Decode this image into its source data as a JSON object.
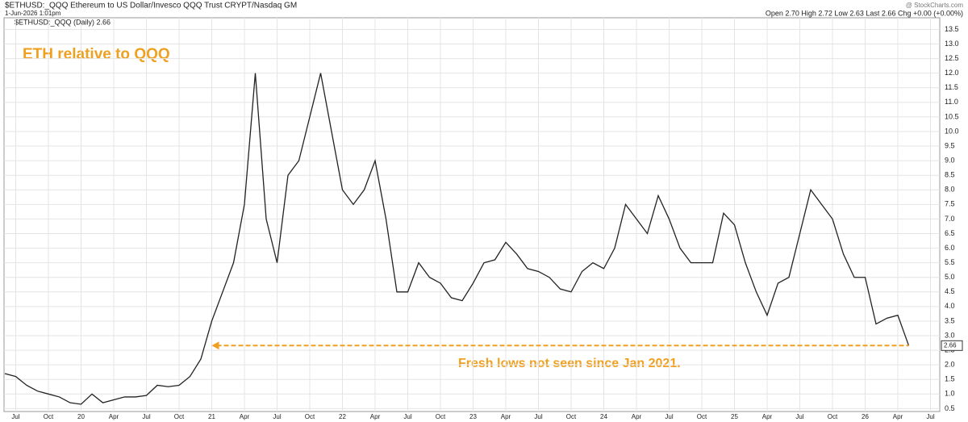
{
  "chart_data": {
    "type": "line",
    "title": "$ETHUSD:_QQQ Ethereum to US Dollar/Invesco QQQ Trust CRYPT/Nasdaq GM",
    "date": "1-Jun-2026 1:01pm",
    "source": "@ StockCharts.com",
    "quote": "Open 2.70 High 2.72 Low 2.63 Last 2.66 Chg +0.00 (+0.00%)",
    "annotations": [
      "ETH relative to QQQ",
      "Fresh lows not seen since Jan 2021."
    ],
    "last_value": 2.66,
    "categories": [
      null,
      "Jul",
      null,
      null,
      "Oct",
      null,
      null,
      "20",
      null,
      null,
      "Apr",
      null,
      null,
      "Jul",
      null,
      null,
      "Oct",
      null,
      null,
      "21",
      null,
      null,
      "Apr",
      null,
      null,
      "Jul",
      null,
      null,
      "Oct",
      null,
      null,
      "22",
      null,
      null,
      "Apr",
      null,
      null,
      "Jul",
      null,
      null,
      "Oct",
      null,
      null,
      "23",
      null,
      null,
      "Apr",
      null,
      null,
      "Jul",
      null,
      null,
      "Oct",
      null,
      null,
      "24",
      null,
      null,
      "Apr",
      null,
      null,
      "Jul",
      null,
      null,
      "Oct",
      null,
      null,
      "25",
      null,
      null,
      "Apr",
      null,
      null,
      "Jul",
      null,
      null,
      "Oct",
      null,
      null,
      "26",
      null,
      null,
      "Apr",
      null,
      null,
      "Jul"
    ],
    "series": [
      {
        "name": "$ETHUSD:_QQQ (Daily) 2.66",
        "color": "#222222",
        "values": [
          1.7,
          1.6,
          1.3,
          1.1,
          1.0,
          0.9,
          0.7,
          0.65,
          1.0,
          0.7,
          0.8,
          0.9,
          0.9,
          0.95,
          1.3,
          1.25,
          1.3,
          1.6,
          2.2,
          3.5,
          4.5,
          5.5,
          7.5,
          12.0,
          7.0,
          5.5,
          8.5,
          9.0,
          10.5,
          12.0,
          10.0,
          8.0,
          7.5,
          8.0,
          9.0,
          7.0,
          4.5,
          4.5,
          5.5,
          5.0,
          4.8,
          4.3,
          4.2,
          4.8,
          5.5,
          5.6,
          6.2,
          5.8,
          5.3,
          5.2,
          5.0,
          4.6,
          4.5,
          5.2,
          5.5,
          5.3,
          6.0,
          7.5,
          7.0,
          6.5,
          7.8,
          7.0,
          6.0,
          5.5,
          5.5,
          5.5,
          7.2,
          6.8,
          5.5,
          4.5,
          3.7,
          4.8,
          5.0,
          6.5,
          8.0,
          7.5,
          7.0,
          5.8,
          5.0,
          5.0,
          3.4,
          3.6,
          3.7,
          2.66,
          null,
          null
        ]
      }
    ],
    "annotation_color": "#f0a020",
    "ylim": [
      0.4,
      13.9
    ],
    "yticks": [
      0.5,
      {
        "value": 1,
        "label": "1.0"
      },
      1.5,
      {
        "value": 2,
        "label": "2.0"
      },
      2.5,
      {
        "value": 3,
        "label": "3.0"
      },
      3.5,
      {
        "value": 4,
        "label": "4.0"
      },
      4.5,
      {
        "value": 5,
        "label": "5.0"
      },
      5.5,
      {
        "value": 6,
        "label": "6.0"
      },
      6.5,
      {
        "value": 7,
        "label": "7.0"
      },
      7.5,
      {
        "value": 8,
        "label": "8.0"
      },
      8.5,
      {
        "value": 9,
        "label": "9.0"
      },
      9.5,
      {
        "value": 10,
        "label": "10.0"
      },
      10.5,
      {
        "value": 11,
        "label": "11.0"
      },
      11.5,
      {
        "value": 12,
        "label": "12.0"
      },
      12.5,
      {
        "value": 13,
        "label": "13.0"
      },
      13.5
    ],
    "grid": true
  }
}
